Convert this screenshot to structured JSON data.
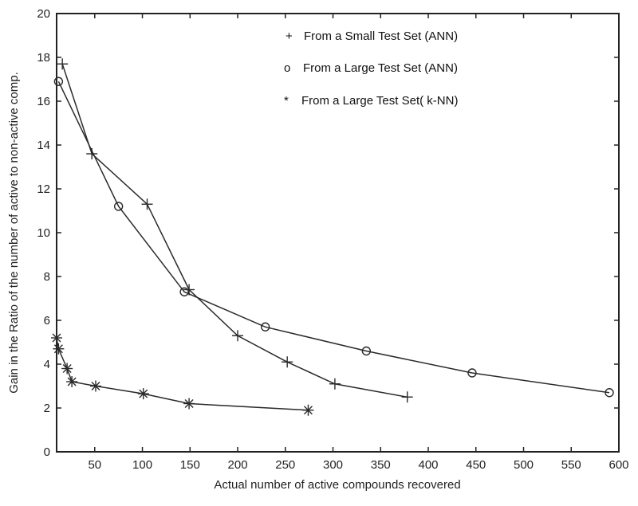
{
  "chart_data": {
    "type": "line",
    "title": "",
    "xlabel": "Actual number of active compounds recovered",
    "ylabel": "Gain in the Ratio of the number of active to non-active comp.",
    "xlim": [
      10,
      600
    ],
    "ylim": [
      0,
      20
    ],
    "xticks": [
      50,
      100,
      150,
      200,
      250,
      300,
      350,
      400,
      450,
      500,
      550,
      600
    ],
    "yticks": [
      0,
      2,
      4,
      6,
      8,
      10,
      12,
      14,
      16,
      18,
      20
    ],
    "grid": false,
    "legend_position": "upper right",
    "series": [
      {
        "name": "From a Small Test Set (ANN)",
        "marker": "+",
        "x": [
          16,
          47,
          105,
          149,
          200,
          252,
          302,
          378
        ],
        "y": [
          17.7,
          13.6,
          11.3,
          7.4,
          5.3,
          4.1,
          3.1,
          2.5
        ]
      },
      {
        "name": "From a Large Test Set (ANN)",
        "marker": "o",
        "x": [
          12,
          75,
          144,
          229,
          335,
          446,
          590
        ],
        "y": [
          16.9,
          11.2,
          7.3,
          5.7,
          4.6,
          3.6,
          2.7
        ]
      },
      {
        "name": "From a Large Test Set( k-NN)",
        "marker": "*",
        "x": [
          10,
          12,
          21,
          26,
          51,
          101,
          149,
          274
        ],
        "y": [
          5.2,
          4.7,
          3.8,
          3.2,
          3.0,
          2.65,
          2.2,
          1.9
        ]
      }
    ]
  },
  "legend": {
    "items": [
      {
        "symbol": "+",
        "label": "From a Small Test Set (ANN)"
      },
      {
        "symbol": "o",
        "label": "From a Large Test Set (ANN)"
      },
      {
        "symbol": "*",
        "label": "From a Large Test Set( k-NN)"
      }
    ]
  },
  "axes": {
    "xlabel": "Actual number of active compounds recovered",
    "ylabel": "Gain in the Ratio of the number of active to non-active comp."
  },
  "colors": {
    "line": "#2a2a2a",
    "axis": "#222222",
    "background": "#ffffff"
  }
}
